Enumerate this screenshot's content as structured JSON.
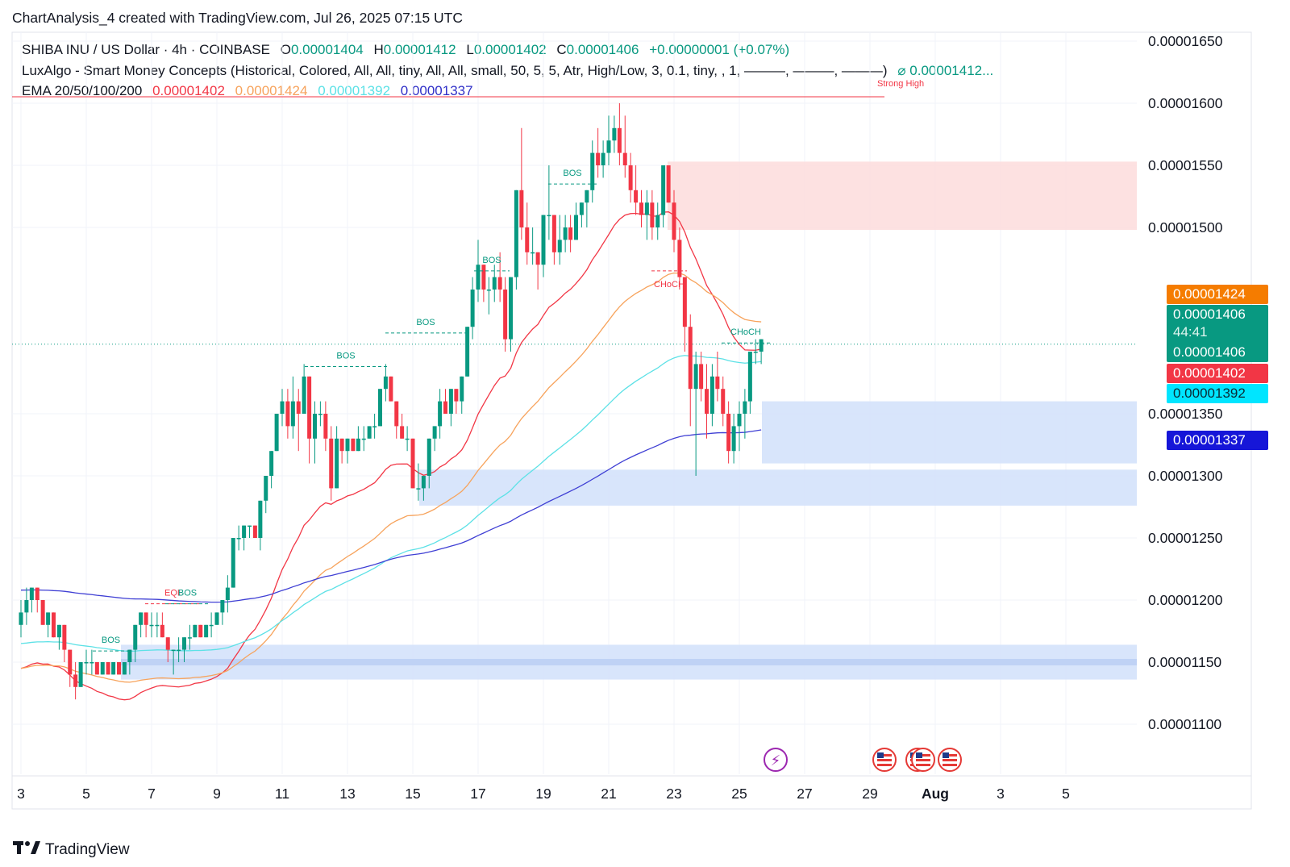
{
  "caption": "ChartAnalysis_4 created with TradingView.com, Jul 26, 2025 07:15 UTC",
  "legend": {
    "symbol": "SHIBA INU / US Dollar · 4h · COINBASE",
    "o_label": "O",
    "o_value": "0.00001404",
    "h_label": "H",
    "h_value": "0.00001412",
    "l_label": "L",
    "l_value": "0.00001402",
    "c_label": "C",
    "c_value": "0.00001406",
    "change": "+0.00000001 (+0.07%)",
    "indicator2": "LuxAlgo - Smart Money Concepts (Historical, Colored, All, All, tiny, All, All, small, 50, 5, 5, Atr, High/Low, 3, 0.1, tiny, , 1, ———, ———, ———)",
    "indicator2_value": "⌀  0.00001412...",
    "strong_high": "Strong High",
    "ema_name": "EMA 20/50/100/200",
    "ema20": "0.00001402",
    "ema50": "0.00001424",
    "ema100": "0.00001392",
    "ema200": "0.00001337"
  },
  "colors": {
    "up": "#089981",
    "down": "#f23645",
    "ema20": "#f23645",
    "ema50": "#f7a35c",
    "ema100": "#5ce1e6",
    "ema200": "#3f3fd4",
    "supply_zone": "#fddede",
    "demand_zone": "#d4e2fb"
  },
  "price_tags": {
    "ema50": "0.00001424",
    "close": "0.00001406",
    "countdown": "44:41",
    "close2": "0.00001406",
    "ema20": "0.00001402",
    "ema100": "0.00001392",
    "ema200": "0.00001337"
  },
  "brand": "TradingView",
  "chart_data": {
    "type": "candlestick",
    "timeframe": "4h",
    "y_ticks": [
      "0.00001650",
      "0.00001600",
      "0.00001550",
      "0.00001500",
      "0.00001350",
      "0.00001300",
      "0.00001250",
      "0.00001200",
      "0.00001150",
      "0.00001100"
    ],
    "y_range": [
      1.075e-05,
      1.655e-05
    ],
    "x_ticks": [
      "3",
      "5",
      "7",
      "9",
      "11",
      "13",
      "15",
      "17",
      "19",
      "21",
      "23",
      "25",
      "27",
      "29",
      "Aug",
      "3",
      "5"
    ],
    "structure_labels": [
      "BOS",
      "EQL",
      "BOS",
      "BOS",
      "BOS",
      "BOS",
      "BOS",
      "BOS",
      "CHoCH",
      "CHoCH"
    ],
    "zones": [
      {
        "type": "supply",
        "from": 1.498e-05,
        "to": 1.553e-05
      },
      {
        "type": "demand",
        "from": 1.31e-05,
        "to": 1.36e-05
      },
      {
        "type": "demand",
        "from": 1.276e-05,
        "to": 1.305e-05
      },
      {
        "type": "demand",
        "from": 1.136e-05,
        "to": 1.164e-05
      }
    ],
    "last_close": 1.406e-05,
    "ema_last": {
      "ema20": 1.402e-05,
      "ema50": 1.424e-05,
      "ema100": 1.392e-05,
      "ema200": 1.337e-05
    },
    "ohlc": [
      [
        3.0,
        1.18,
        1.2,
        1.17,
        1.19
      ],
      [
        3.17,
        1.19,
        1.21,
        1.18,
        1.2
      ],
      [
        3.33,
        1.2,
        1.21,
        1.19,
        1.21
      ],
      [
        3.5,
        1.21,
        1.21,
        1.19,
        1.2
      ],
      [
        3.67,
        1.2,
        1.2,
        1.18,
        1.18
      ],
      [
        3.83,
        1.18,
        1.19,
        1.17,
        1.19
      ],
      [
        4.0,
        1.19,
        1.19,
        1.17,
        1.17
      ],
      [
        4.17,
        1.17,
        1.18,
        1.16,
        1.18
      ],
      [
        4.33,
        1.18,
        1.18,
        1.15,
        1.16
      ],
      [
        4.5,
        1.16,
        1.16,
        1.13,
        1.14
      ],
      [
        4.67,
        1.14,
        1.15,
        1.12,
        1.13
      ],
      [
        4.83,
        1.13,
        1.15,
        1.13,
        1.15
      ],
      [
        5.0,
        1.15,
        1.16,
        1.14,
        1.15
      ],
      [
        5.17,
        1.15,
        1.16,
        1.14,
        1.15
      ],
      [
        5.33,
        1.15,
        1.15,
        1.14,
        1.14
      ],
      [
        5.5,
        1.14,
        1.15,
        1.14,
        1.15
      ],
      [
        5.67,
        1.15,
        1.15,
        1.14,
        1.14
      ],
      [
        5.83,
        1.14,
        1.15,
        1.14,
        1.15
      ],
      [
        6.0,
        1.15,
        1.15,
        1.14,
        1.14
      ],
      [
        6.17,
        1.14,
        1.15,
        1.14,
        1.15
      ],
      [
        6.33,
        1.15,
        1.16,
        1.14,
        1.16
      ],
      [
        6.5,
        1.16,
        1.18,
        1.15,
        1.18
      ],
      [
        6.67,
        1.18,
        1.19,
        1.17,
        1.19
      ],
      [
        6.83,
        1.19,
        1.19,
        1.17,
        1.18
      ],
      [
        7.0,
        1.18,
        1.19,
        1.17,
        1.18
      ],
      [
        7.17,
        1.18,
        1.19,
        1.17,
        1.18
      ],
      [
        7.33,
        1.18,
        1.19,
        1.17,
        1.17
      ],
      [
        7.5,
        1.17,
        1.17,
        1.15,
        1.16
      ],
      [
        7.67,
        1.16,
        1.16,
        1.14,
        1.16
      ],
      [
        7.83,
        1.16,
        1.17,
        1.15,
        1.16
      ],
      [
        8.0,
        1.16,
        1.17,
        1.15,
        1.17
      ],
      [
        8.17,
        1.17,
        1.18,
        1.16,
        1.17
      ],
      [
        8.33,
        1.17,
        1.18,
        1.17,
        1.18
      ],
      [
        8.5,
        1.18,
        1.18,
        1.17,
        1.17
      ],
      [
        8.67,
        1.17,
        1.18,
        1.17,
        1.18
      ],
      [
        8.83,
        1.18,
        1.19,
        1.17,
        1.18
      ],
      [
        9.0,
        1.18,
        1.19,
        1.18,
        1.19
      ],
      [
        9.17,
        1.19,
        1.2,
        1.18,
        1.2
      ],
      [
        9.33,
        1.2,
        1.22,
        1.19,
        1.21
      ],
      [
        9.5,
        1.21,
        1.25,
        1.21,
        1.25
      ],
      [
        9.67,
        1.25,
        1.26,
        1.24,
        1.25
      ],
      [
        9.83,
        1.25,
        1.26,
        1.24,
        1.26
      ],
      [
        10.0,
        1.26,
        1.26,
        1.25,
        1.26
      ],
      [
        10.17,
        1.26,
        1.26,
        1.25,
        1.25
      ],
      [
        10.33,
        1.25,
        1.28,
        1.24,
        1.28
      ],
      [
        10.5,
        1.28,
        1.3,
        1.27,
        1.3
      ],
      [
        10.67,
        1.3,
        1.32,
        1.29,
        1.32
      ],
      [
        10.83,
        1.32,
        1.35,
        1.32,
        1.35
      ],
      [
        11.0,
        1.35,
        1.37,
        1.34,
        1.36
      ],
      [
        11.17,
        1.36,
        1.37,
        1.33,
        1.34
      ],
      [
        11.33,
        1.34,
        1.38,
        1.33,
        1.36
      ],
      [
        11.5,
        1.36,
        1.37,
        1.32,
        1.35
      ],
      [
        11.67,
        1.35,
        1.39,
        1.35,
        1.38
      ],
      [
        11.83,
        1.38,
        1.38,
        1.31,
        1.33
      ],
      [
        12.0,
        1.33,
        1.36,
        1.31,
        1.35
      ],
      [
        12.17,
        1.35,
        1.36,
        1.34,
        1.35
      ],
      [
        12.33,
        1.35,
        1.36,
        1.32,
        1.33
      ],
      [
        12.5,
        1.33,
        1.34,
        1.28,
        1.29
      ],
      [
        12.67,
        1.29,
        1.34,
        1.29,
        1.33
      ],
      [
        12.83,
        1.33,
        1.33,
        1.31,
        1.32
      ],
      [
        13.0,
        1.32,
        1.33,
        1.31,
        1.33
      ],
      [
        13.17,
        1.33,
        1.33,
        1.32,
        1.32
      ],
      [
        13.33,
        1.32,
        1.34,
        1.32,
        1.33
      ],
      [
        13.5,
        1.33,
        1.34,
        1.32,
        1.33
      ],
      [
        13.67,
        1.33,
        1.34,
        1.33,
        1.34
      ],
      [
        13.83,
        1.34,
        1.35,
        1.33,
        1.34
      ],
      [
        14.0,
        1.34,
        1.37,
        1.34,
        1.37
      ],
      [
        14.17,
        1.37,
        1.39,
        1.36,
        1.38
      ],
      [
        14.33,
        1.38,
        1.38,
        1.36,
        1.36
      ],
      [
        14.5,
        1.36,
        1.36,
        1.33,
        1.34
      ],
      [
        14.67,
        1.34,
        1.35,
        1.33,
        1.33
      ],
      [
        14.83,
        1.33,
        1.34,
        1.32,
        1.33
      ],
      [
        15.0,
        1.33,
        1.33,
        1.29,
        1.29
      ],
      [
        15.17,
        1.29,
        1.31,
        1.28,
        1.29
      ],
      [
        15.33,
        1.29,
        1.3,
        1.28,
        1.3
      ],
      [
        15.5,
        1.3,
        1.33,
        1.29,
        1.33
      ],
      [
        15.67,
        1.33,
        1.34,
        1.32,
        1.34
      ],
      [
        15.83,
        1.34,
        1.37,
        1.33,
        1.36
      ],
      [
        16.0,
        1.36,
        1.37,
        1.35,
        1.35
      ],
      [
        16.17,
        1.35,
        1.37,
        1.34,
        1.37
      ],
      [
        16.33,
        1.37,
        1.37,
        1.35,
        1.36
      ],
      [
        16.5,
        1.36,
        1.38,
        1.35,
        1.38
      ],
      [
        16.67,
        1.38,
        1.42,
        1.38,
        1.42
      ],
      [
        16.83,
        1.42,
        1.46,
        1.41,
        1.45
      ],
      [
        17.0,
        1.45,
        1.49,
        1.44,
        1.47
      ],
      [
        17.17,
        1.47,
        1.47,
        1.44,
        1.45
      ],
      [
        17.33,
        1.45,
        1.46,
        1.43,
        1.45
      ],
      [
        17.5,
        1.45,
        1.47,
        1.44,
        1.46
      ],
      [
        17.67,
        1.46,
        1.48,
        1.44,
        1.45
      ],
      [
        17.83,
        1.45,
        1.46,
        1.4,
        1.41
      ],
      [
        18.0,
        1.41,
        1.46,
        1.4,
        1.46
      ],
      [
        18.17,
        1.46,
        1.53,
        1.45,
        1.53
      ],
      [
        18.33,
        1.53,
        1.58,
        1.49,
        1.5
      ],
      [
        18.5,
        1.5,
        1.52,
        1.47,
        1.48
      ],
      [
        18.67,
        1.48,
        1.5,
        1.47,
        1.48
      ],
      [
        18.83,
        1.48,
        1.48,
        1.45,
        1.47
      ],
      [
        19.0,
        1.47,
        1.51,
        1.46,
        1.51
      ],
      [
        19.17,
        1.51,
        1.55,
        1.49,
        1.51
      ],
      [
        19.33,
        1.51,
        1.51,
        1.47,
        1.48
      ],
      [
        19.5,
        1.48,
        1.51,
        1.47,
        1.49
      ],
      [
        19.67,
        1.49,
        1.51,
        1.48,
        1.5
      ],
      [
        19.83,
        1.5,
        1.51,
        1.48,
        1.49
      ],
      [
        20.0,
        1.49,
        1.52,
        1.49,
        1.51
      ],
      [
        20.17,
        1.51,
        1.52,
        1.5,
        1.52
      ],
      [
        20.33,
        1.52,
        1.53,
        1.5,
        1.53
      ],
      [
        20.5,
        1.53,
        1.57,
        1.52,
        1.56
      ],
      [
        20.67,
        1.56,
        1.58,
        1.54,
        1.55
      ],
      [
        20.83,
        1.55,
        1.57,
        1.54,
        1.56
      ],
      [
        21.0,
        1.56,
        1.59,
        1.55,
        1.57
      ],
      [
        21.17,
        1.57,
        1.59,
        1.56,
        1.58
      ],
      [
        21.33,
        1.58,
        1.6,
        1.55,
        1.56
      ],
      [
        21.5,
        1.56,
        1.59,
        1.54,
        1.55
      ],
      [
        21.67,
        1.55,
        1.56,
        1.52,
        1.53
      ],
      [
        21.83,
        1.53,
        1.55,
        1.51,
        1.52
      ],
      [
        22.0,
        1.52,
        1.53,
        1.5,
        1.51
      ],
      [
        22.17,
        1.51,
        1.53,
        1.49,
        1.52
      ],
      [
        22.33,
        1.52,
        1.53,
        1.49,
        1.5
      ],
      [
        22.5,
        1.5,
        1.52,
        1.49,
        1.51
      ],
      [
        22.67,
        1.51,
        1.55,
        1.5,
        1.55
      ],
      [
        22.83,
        1.55,
        1.55,
        1.52,
        1.52
      ],
      [
        23.0,
        1.52,
        1.53,
        1.48,
        1.49
      ],
      [
        23.17,
        1.49,
        1.5,
        1.45,
        1.46
      ],
      [
        23.33,
        1.46,
        1.46,
        1.4,
        1.42
      ],
      [
        23.5,
        1.42,
        1.43,
        1.34,
        1.37
      ],
      [
        23.67,
        1.37,
        1.4,
        1.3,
        1.39
      ],
      [
        23.83,
        1.39,
        1.4,
        1.36,
        1.37
      ],
      [
        24.0,
        1.37,
        1.39,
        1.33,
        1.35
      ],
      [
        24.17,
        1.35,
        1.39,
        1.34,
        1.38
      ],
      [
        24.33,
        1.38,
        1.4,
        1.36,
        1.37
      ],
      [
        24.5,
        1.37,
        1.38,
        1.34,
        1.35
      ],
      [
        24.67,
        1.35,
        1.36,
        1.31,
        1.32
      ],
      [
        24.83,
        1.32,
        1.35,
        1.31,
        1.34
      ],
      [
        25.0,
        1.34,
        1.36,
        1.32,
        1.35
      ],
      [
        25.17,
        1.35,
        1.37,
        1.33,
        1.36
      ],
      [
        25.33,
        1.36,
        1.4,
        1.35,
        1.4
      ],
      [
        25.5,
        1.4,
        1.41,
        1.39,
        1.4
      ],
      [
        25.67,
        1.4,
        1.41,
        1.39,
        1.41
      ]
    ]
  }
}
